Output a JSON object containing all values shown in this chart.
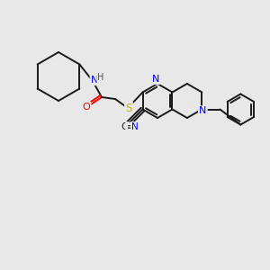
{
  "bg_color": "#e8e8e8",
  "bond_color": "#1a1a1a",
  "N_color": "#0000ff",
  "O_color": "#ff0000",
  "S_color": "#bbbb00",
  "figsize": [
    3.0,
    3.0
  ],
  "dpi": 100,
  "lw": 1.4,
  "xlim": [
    0,
    300
  ],
  "ylim": [
    0,
    300
  ]
}
